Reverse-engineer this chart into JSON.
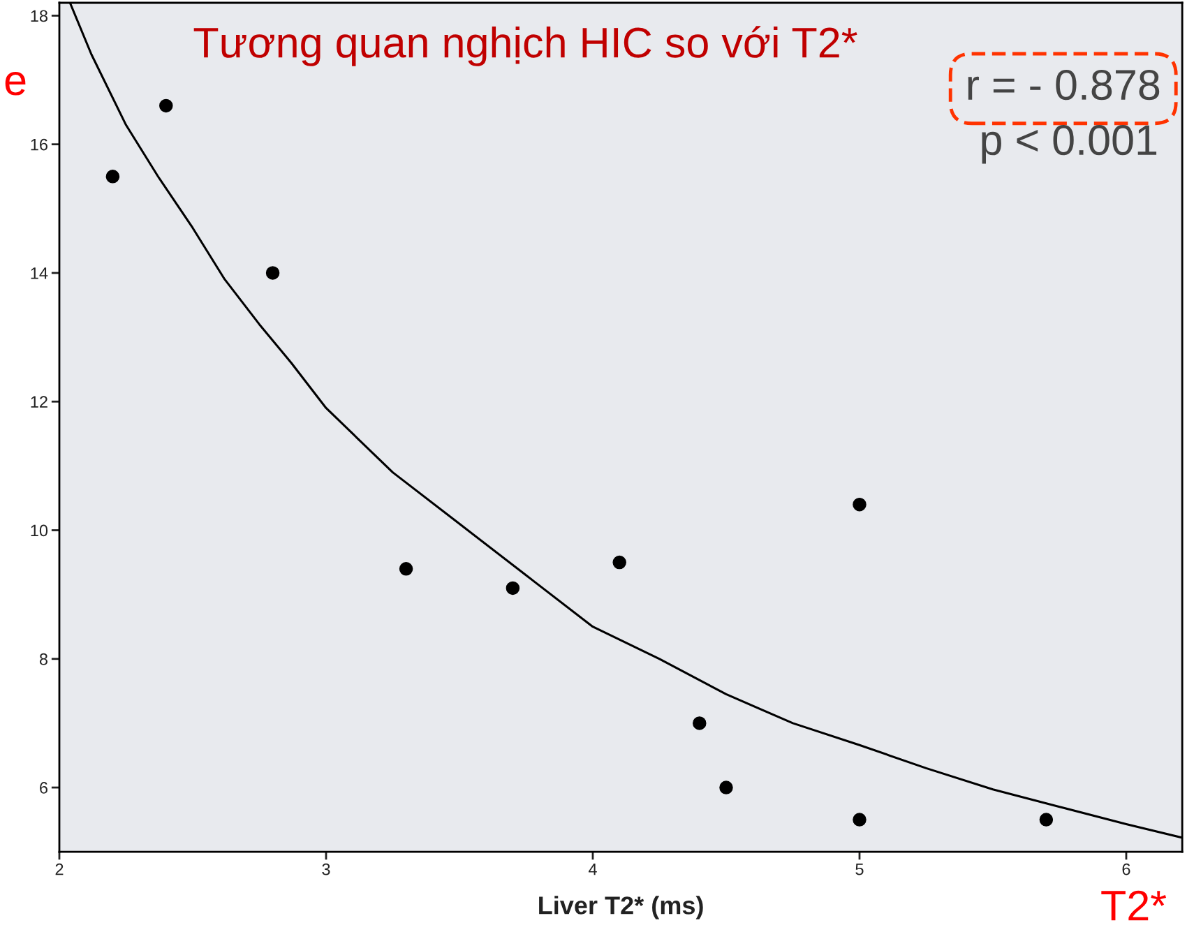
{
  "chart_data": {
    "type": "scatter",
    "title": "Tương quan nghịch HIC so với T2*",
    "xlabel": "Liver T2* (ms)",
    "series": [
      {
        "marker": "circle",
        "color": "#000000",
        "x": [
          2.2,
          2.4,
          2.8,
          3.3,
          3.7,
          4.1,
          4.4,
          4.5,
          5.0,
          5.0,
          5.7
        ],
        "values": [
          15.5,
          16.6,
          14.0,
          9.4,
          9.1,
          9.5,
          7.0,
          6.0,
          10.4,
          5.5,
          5.5
        ]
      },
      {
        "type": "line",
        "color": "#000000",
        "x": [
          2.04,
          2.12,
          2.25,
          2.37,
          2.5,
          2.62,
          2.75,
          2.87,
          3.0,
          3.25,
          3.5,
          3.75,
          4.0,
          4.25,
          4.5,
          4.75,
          5.0,
          5.25,
          5.5,
          5.75,
          6.0,
          6.21
        ],
        "values": [
          18.2,
          17.4,
          16.3,
          15.5,
          14.7,
          13.9,
          13.2,
          12.6,
          11.9,
          10.9,
          10.1,
          9.3,
          8.5,
          8.0,
          7.45,
          7.0,
          6.66,
          6.3,
          5.97,
          5.7,
          5.43,
          5.22
        ]
      }
    ],
    "xlim": [
      2,
      6.21
    ],
    "ylim": [
      5,
      18.2
    ],
    "xticks": [
      2,
      3,
      4,
      5,
      6
    ],
    "yticks": [
      6,
      8,
      10,
      12,
      14,
      16,
      18
    ],
    "grid": false,
    "legend": false,
    "annotations": [
      "r = - 0.878",
      "p < 0.001",
      "e",
      "T2*"
    ]
  }
}
